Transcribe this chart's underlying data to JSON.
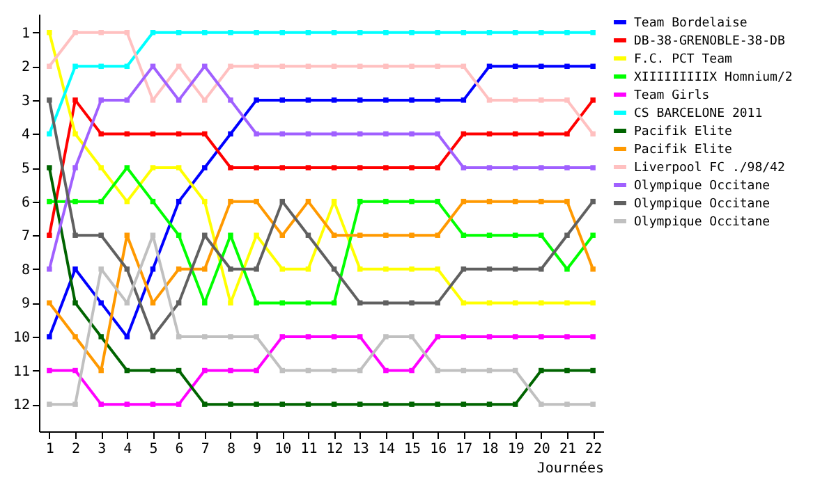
{
  "chart_data": {
    "type": "line",
    "xlabel": "Journées",
    "x": [
      1,
      2,
      3,
      4,
      5,
      6,
      7,
      8,
      9,
      10,
      11,
      12,
      13,
      14,
      15,
      16,
      17,
      18,
      19,
      20,
      21,
      22
    ],
    "xlim": [
      0.6,
      22.4
    ],
    "xticks": [
      1,
      2,
      3,
      4,
      5,
      6,
      7,
      8,
      9,
      10,
      11,
      12,
      13,
      14,
      15,
      16,
      17,
      18,
      19,
      20,
      21,
      22
    ],
    "ylim": [
      12.8,
      0.45
    ],
    "yticks": [
      1,
      2,
      3,
      4,
      5,
      6,
      7,
      8,
      9,
      10,
      11,
      12
    ],
    "grid": false,
    "legend": "right",
    "marker": "square",
    "line_style": "solid",
    "series": [
      {
        "name": "Team Bordelaise",
        "color": "#0000ff",
        "values": [
          10,
          8,
          9,
          10,
          8,
          6,
          5,
          4,
          3,
          3,
          3,
          3,
          3,
          3,
          3,
          3,
          3,
          2,
          2,
          2,
          2,
          2
        ]
      },
      {
        "name": "DB-38-GRENOBLE-38-DB",
        "color": "#ff0000",
        "values": [
          7,
          3,
          4,
          4,
          4,
          4,
          4,
          5,
          5,
          5,
          5,
          5,
          5,
          5,
          5,
          5,
          4,
          4,
          4,
          4,
          4,
          3
        ]
      },
      {
        "name": "F.C. PCT Team",
        "color": "#ffff00",
        "values": [
          1,
          4,
          5,
          6,
          5,
          5,
          6,
          9,
          7,
          8,
          8,
          6,
          8,
          8,
          8,
          8,
          9,
          9,
          9,
          9,
          9,
          9
        ]
      },
      {
        "name": "XIIIIIIIIIX Homnium/2",
        "color": "#00ff00",
        "values": [
          6,
          6,
          6,
          5,
          6,
          7,
          9,
          7,
          9,
          9,
          9,
          9,
          6,
          6,
          6,
          6,
          7,
          7,
          7,
          7,
          8,
          7
        ]
      },
      {
        "name": "Team Girls",
        "color": "#ff00ff",
        "values": [
          11,
          11,
          12,
          12,
          12,
          12,
          11,
          11,
          11,
          10,
          10,
          10,
          10,
          11,
          11,
          10,
          10,
          10,
          10,
          10,
          10,
          10
        ]
      },
      {
        "name": "CS BARCELONE 2011",
        "color": "#00ffff",
        "values": [
          4,
          2,
          2,
          2,
          1,
          1,
          1,
          1,
          1,
          1,
          1,
          1,
          1,
          1,
          1,
          1,
          1,
          1,
          1,
          1,
          1,
          1
        ]
      },
      {
        "name": "Pacifik Elite",
        "color": "#006400",
        "values": [
          5,
          9,
          10,
          11,
          11,
          11,
          12,
          12,
          12,
          12,
          12,
          12,
          12,
          12,
          12,
          12,
          12,
          12,
          12,
          11,
          11,
          11
        ]
      },
      {
        "name": "Pacifik Elite",
        "color": "#ff9900",
        "values": [
          9,
          10,
          11,
          7,
          9,
          8,
          8,
          6,
          6,
          7,
          6,
          7,
          7,
          7,
          7,
          7,
          6,
          6,
          6,
          6,
          6,
          8
        ]
      },
      {
        "name": "Liverpool FC ./98/42",
        "color": "#ffc0c0",
        "values": [
          2,
          1,
          1,
          1,
          3,
          2,
          3,
          2,
          2,
          2,
          2,
          2,
          2,
          2,
          2,
          2,
          2,
          3,
          3,
          3,
          3,
          4
        ]
      },
      {
        "name": "Olympique Occitane",
        "color": "#a060ff",
        "values": [
          8,
          5,
          3,
          3,
          2,
          3,
          2,
          3,
          4,
          4,
          4,
          4,
          4,
          4,
          4,
          4,
          5,
          5,
          5,
          5,
          5,
          5
        ]
      },
      {
        "name": "Olympique Occitane",
        "color": "#606060",
        "values": [
          3,
          7,
          7,
          8,
          10,
          9,
          7,
          8,
          8,
          6,
          7,
          8,
          9,
          9,
          9,
          9,
          8,
          8,
          8,
          8,
          7,
          6
        ]
      },
      {
        "name": "Olympique Occitane",
        "color": "#c0c0c0",
        "values": [
          12,
          12,
          8,
          9,
          7,
          10,
          10,
          10,
          10,
          11,
          11,
          11,
          11,
          10,
          10,
          11,
          11,
          11,
          11,
          12,
          12,
          12
        ]
      }
    ]
  }
}
